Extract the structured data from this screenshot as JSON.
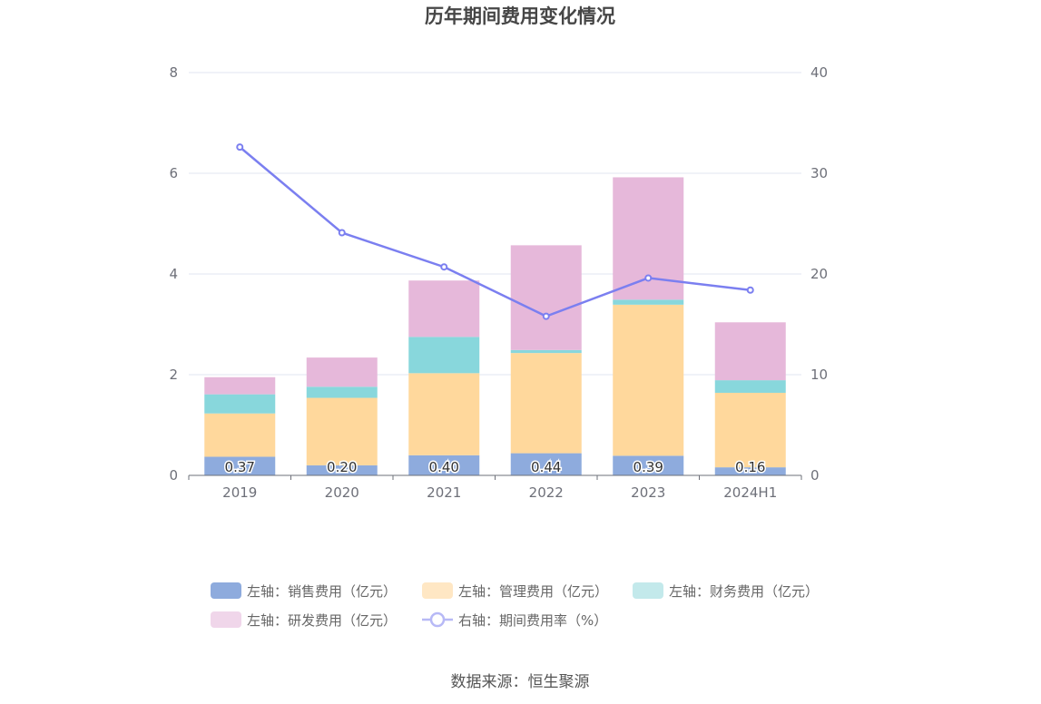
{
  "chart_data": {
    "type": "bar",
    "title": "历年期间费用变化情况",
    "categories": [
      "2019",
      "2020",
      "2021",
      "2022",
      "2023",
      "2024H1"
    ],
    "left_axis": {
      "ylim": [
        0,
        8
      ],
      "ticks": [
        "0",
        "2",
        "4",
        "6",
        "8"
      ]
    },
    "right_axis": {
      "ylim": [
        0,
        40
      ],
      "ticks": [
        "0",
        "10",
        "20",
        "30",
        "40"
      ]
    },
    "series": [
      {
        "name": "左轴：销售费用（亿元）",
        "kind": "bar",
        "axis": "left",
        "color": "#8eabdd",
        "values": [
          0.37,
          0.2,
          0.4,
          0.44,
          0.39,
          0.16
        ],
        "labels": [
          "0.37",
          "0.20",
          "0.40",
          "0.44",
          "0.39",
          "0.16"
        ]
      },
      {
        "name": "左轴：管理费用（亿元）",
        "kind": "bar",
        "axis": "left",
        "color": "#ffd89c",
        "values": [
          0.86,
          1.34,
          1.63,
          1.99,
          3.0,
          1.48
        ]
      },
      {
        "name": "左轴：财务费用（亿元）",
        "kind": "bar",
        "axis": "left",
        "color": "#88d7dc",
        "values": [
          0.38,
          0.22,
          0.72,
          0.06,
          0.1,
          0.25
        ]
      },
      {
        "name": "左轴：研发费用（亿元）",
        "kind": "bar",
        "axis": "left",
        "color": "#e6b8da",
        "values": [
          0.34,
          0.58,
          1.12,
          2.08,
          2.43,
          1.15
        ]
      },
      {
        "name": "右轴：期间费用率（%）",
        "kind": "line",
        "axis": "right",
        "color": "#7b7ff0",
        "values": [
          32.6,
          24.1,
          20.7,
          15.8,
          19.6,
          18.4
        ]
      }
    ],
    "source": "数据来源：恒生聚源"
  }
}
